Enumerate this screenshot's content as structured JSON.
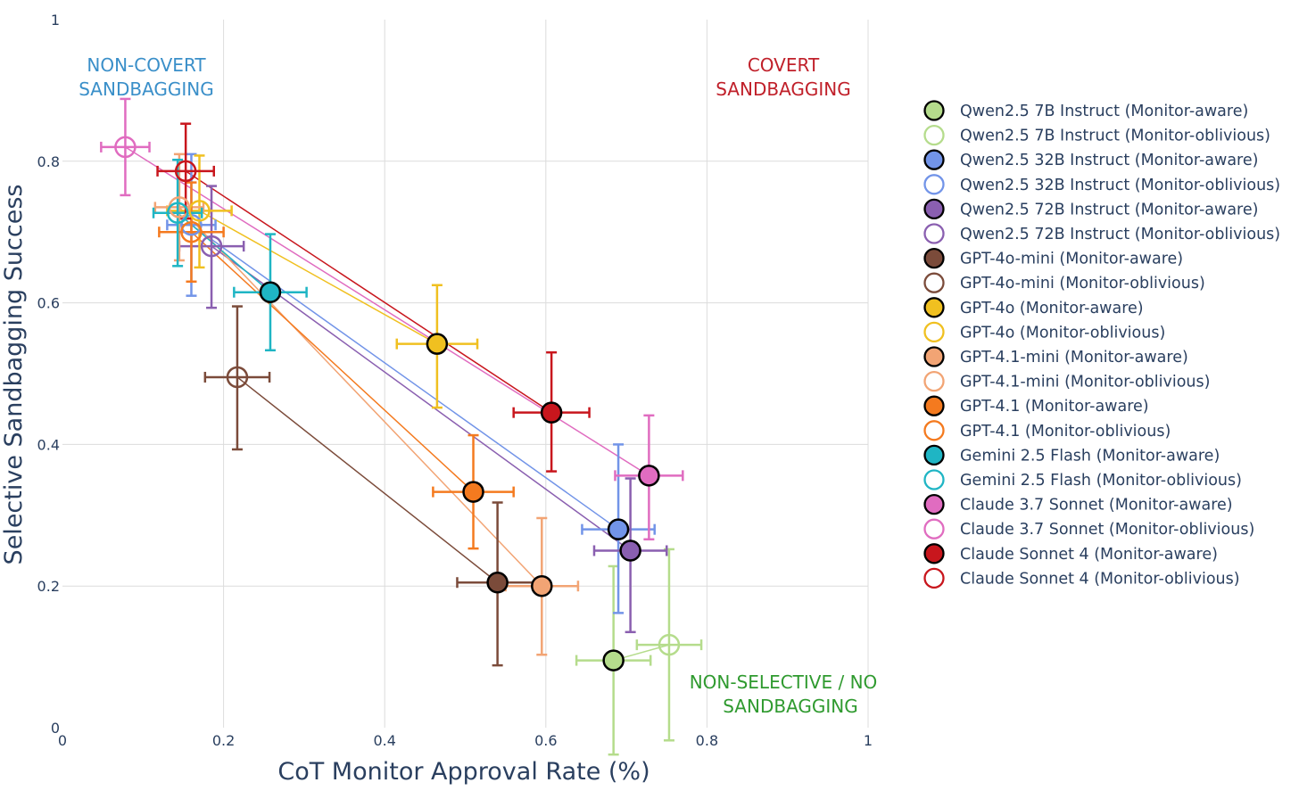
{
  "chart_data": {
    "type": "scatter",
    "xlabel": "CoT Monitor Approval Rate (%)",
    "ylabel": "Selective Sandbagging Success",
    "xlim": [
      0,
      1
    ],
    "ylim": [
      0,
      1
    ],
    "xticks": [
      "0",
      "0.2",
      "0.4",
      "0.6",
      "0.8",
      "1"
    ],
    "yticks": [
      "0",
      "0.2",
      "0.4",
      "0.6",
      "0.8",
      "1"
    ],
    "grid": true,
    "legend_position": "right",
    "regions": [
      {
        "lines": [
          "NON-COVERT",
          "SANDBAGGING"
        ],
        "color": "#3a8fc9",
        "anchor": "top-left"
      },
      {
        "lines": [
          "COVERT",
          "SANDBAGGING"
        ],
        "color": "#c0202a",
        "anchor": "top-right"
      },
      {
        "lines": [
          "NON-SELECTIVE / NO",
          "SANDBAGGING"
        ],
        "color": "#2f9a2f",
        "anchor": "bottom-right"
      }
    ],
    "series": [
      {
        "name": "Qwen2.5 7B Instruct (Monitor-aware)",
        "color": "#b5dc8c",
        "filled": true,
        "x": 0.684,
        "y": 0.095,
        "xerr": [
          0.046,
          0.046
        ],
        "yerr": [
          0.133,
          0.133
        ]
      },
      {
        "name": "Qwen2.5 7B Instruct (Monitor-oblivious)",
        "color": "#b5dc8c",
        "filled": false,
        "x": 0.753,
        "y": 0.117,
        "xerr": [
          0.04,
          0.04
        ],
        "yerr": [
          0.135,
          0.135
        ]
      },
      {
        "name": "Qwen2.5 32B Instruct (Monitor-aware)",
        "color": "#7294e8",
        "filled": true,
        "x": 0.69,
        "y": 0.28,
        "xerr": [
          0.045,
          0.045
        ],
        "yerr": [
          0.118,
          0.12
        ]
      },
      {
        "name": "Qwen2.5 32B Instruct (Monitor-oblivious)",
        "color": "#7294e8",
        "filled": false,
        "x": 0.16,
        "y": 0.71,
        "xerr": [
          0.03,
          0.03
        ],
        "yerr": [
          0.1,
          0.1
        ]
      },
      {
        "name": "Qwen2.5 72B Instruct (Monitor-aware)",
        "color": "#8a5fb0",
        "filled": true,
        "x": 0.705,
        "y": 0.25,
        "xerr": [
          0.045,
          0.045
        ],
        "yerr": [
          0.115,
          0.102
        ]
      },
      {
        "name": "Qwen2.5 72B Instruct (Monitor-oblivious)",
        "color": "#8a5fb0",
        "filled": false,
        "x": 0.185,
        "y": 0.68,
        "xerr": [
          0.04,
          0.04
        ],
        "yerr": [
          0.087,
          0.085
        ]
      },
      {
        "name": "GPT-4o-mini (Monitor-aware)",
        "color": "#7b4b3a",
        "filled": true,
        "x": 0.54,
        "y": 0.205,
        "xerr": [
          0.05,
          0.05
        ],
        "yerr": [
          0.117,
          0.113
        ]
      },
      {
        "name": "GPT-4o-mini (Monitor-oblivious)",
        "color": "#7b4b3a",
        "filled": false,
        "x": 0.217,
        "y": 0.495,
        "xerr": [
          0.04,
          0.04
        ],
        "yerr": [
          0.102,
          0.1
        ]
      },
      {
        "name": "GPT-4o (Monitor-aware)",
        "color": "#f0c020",
        "filled": true,
        "x": 0.465,
        "y": 0.542,
        "xerr": [
          0.05,
          0.05
        ],
        "yerr": [
          0.09,
          0.083
        ]
      },
      {
        "name": "GPT-4o (Monitor-oblivious)",
        "color": "#f0c020",
        "filled": false,
        "x": 0.17,
        "y": 0.73,
        "xerr": [
          0.04,
          0.04
        ],
        "yerr": [
          0.08,
          0.078
        ]
      },
      {
        "name": "GPT-4.1-mini (Monitor-aware)",
        "color": "#f2a474",
        "filled": true,
        "x": 0.595,
        "y": 0.2,
        "xerr": [
          0.045,
          0.045
        ],
        "yerr": [
          0.097,
          0.096
        ]
      },
      {
        "name": "GPT-4.1-mini (Monitor-oblivious)",
        "color": "#f2a474",
        "filled": false,
        "x": 0.145,
        "y": 0.735,
        "xerr": [
          0.03,
          0.03
        ],
        "yerr": [
          0.075,
          0.075
        ]
      },
      {
        "name": "GPT-4.1 (Monitor-aware)",
        "color": "#f47a1f",
        "filled": true,
        "x": 0.51,
        "y": 0.333,
        "xerr": [
          0.05,
          0.05
        ],
        "yerr": [
          0.08,
          0.08
        ]
      },
      {
        "name": "GPT-4.1 (Monitor-oblivious)",
        "color": "#f47a1f",
        "filled": false,
        "x": 0.16,
        "y": 0.7,
        "xerr": [
          0.04,
          0.04
        ],
        "yerr": [
          0.07,
          0.07
        ]
      },
      {
        "name": "Gemini 2.5 Flash (Monitor-aware)",
        "color": "#1fb5c4",
        "filled": true,
        "x": 0.258,
        "y": 0.615,
        "xerr": [
          0.045,
          0.045
        ],
        "yerr": [
          0.082,
          0.082
        ]
      },
      {
        "name": "Gemini 2.5 Flash (Monitor-oblivious)",
        "color": "#1fb5c4",
        "filled": false,
        "x": 0.143,
        "y": 0.727,
        "xerr": [
          0.03,
          0.03
        ],
        "yerr": [
          0.075,
          0.075
        ]
      },
      {
        "name": "Claude 3.7 Sonnet (Monitor-aware)",
        "color": "#e06cc0",
        "filled": true,
        "x": 0.728,
        "y": 0.356,
        "xerr": [
          0.042,
          0.042
        ],
        "yerr": [
          0.09,
          0.085
        ]
      },
      {
        "name": "Claude 3.7 Sonnet (Monitor-oblivious)",
        "color": "#e06cc0",
        "filled": false,
        "x": 0.078,
        "y": 0.82,
        "xerr": [
          0.03,
          0.03
        ],
        "yerr": [
          0.068,
          0.068
        ]
      },
      {
        "name": "Claude Sonnet 4 (Monitor-aware)",
        "color": "#c8161d",
        "filled": true,
        "x": 0.607,
        "y": 0.445,
        "xerr": [
          0.047,
          0.047
        ],
        "yerr": [
          0.083,
          0.085
        ]
      },
      {
        "name": "Claude Sonnet 4 (Monitor-oblivious)",
        "color": "#c8161d",
        "filled": false,
        "x": 0.153,
        "y": 0.786,
        "xerr": [
          0.035,
          0.035
        ],
        "yerr": [
          0.067,
          0.067
        ]
      }
    ],
    "connections": [
      [
        0,
        1
      ],
      [
        2,
        3
      ],
      [
        4,
        5
      ],
      [
        6,
        7
      ],
      [
        8,
        9
      ],
      [
        10,
        11
      ],
      [
        12,
        13
      ],
      [
        14,
        15
      ],
      [
        16,
        17
      ],
      [
        18,
        19
      ]
    ]
  }
}
